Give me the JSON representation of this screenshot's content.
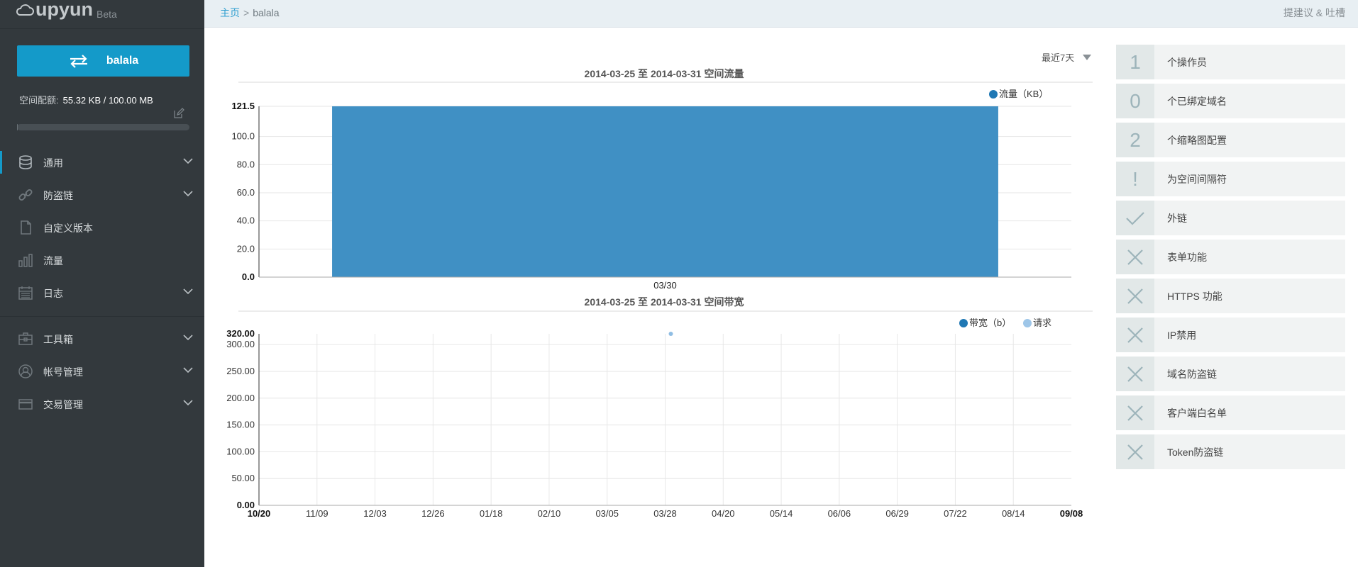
{
  "logo": {
    "text": "upyun",
    "beta": "Beta"
  },
  "space": {
    "name": "balala"
  },
  "quota": {
    "label": "空间配额:",
    "value": "55.32 KB / 100.00 MB",
    "used_fraction": 0.00054
  },
  "nav": [
    {
      "label": "通用",
      "icon": "database-icon",
      "expandable": true,
      "active": true
    },
    {
      "label": "防盗链",
      "icon": "link-icon",
      "expandable": true,
      "active": false
    },
    {
      "label": "自定义版本",
      "icon": "document-icon",
      "expandable": false,
      "active": false
    },
    {
      "label": "流量",
      "icon": "bar-chart-icon",
      "expandable": false,
      "active": false
    },
    {
      "label": "日志",
      "icon": "calendar-icon",
      "expandable": true,
      "active": false
    },
    {
      "label": "工具箱",
      "icon": "toolbox-icon",
      "expandable": true,
      "active": false
    },
    {
      "label": "帐号管理",
      "icon": "user-icon",
      "expandable": true,
      "active": false
    },
    {
      "label": "交易管理",
      "icon": "card-icon",
      "expandable": true,
      "active": false
    }
  ],
  "topbar": {
    "home": "主页",
    "separator": ">",
    "current": "balala",
    "feedback": "提建议 & 吐槽"
  },
  "range": {
    "selected": "最近7天"
  },
  "chart_data": [
    {
      "type": "bar",
      "title": "2014-03-25 至 2014-03-31 空间流量",
      "legend": [
        {
          "name": "流量（KB）",
          "color": "#1f78b4"
        }
      ],
      "legend_position": "top-right",
      "categories": [
        "03/30"
      ],
      "series": [
        {
          "name": "流量（KB）",
          "values": [
            121.5
          ]
        }
      ],
      "y_ticks": [
        "0.0",
        "20.0",
        "40.0",
        "60.0",
        "80.0",
        "100.0",
        "121.5"
      ],
      "y_tick_values": [
        0,
        20,
        40,
        60,
        80,
        100,
        121.5
      ],
      "ylim": [
        0,
        121.5
      ],
      "grid": true
    },
    {
      "type": "line",
      "title": "2014-03-25 至 2014-03-31 空间带宽",
      "legend": [
        {
          "name": "带宽（b）",
          "color": "#1f78b4"
        },
        {
          "name": "请求",
          "color": "#9ec6e8"
        }
      ],
      "legend_position": "top-right",
      "x_ticks": [
        "10/20",
        "11/09",
        "12/03",
        "12/26",
        "01/18",
        "02/10",
        "03/05",
        "03/28",
        "04/20",
        "05/14",
        "06/06",
        "06/29",
        "07/22",
        "08/14",
        "09/08"
      ],
      "y_ticks": [
        "0.00",
        "50.00",
        "100.00",
        "150.00",
        "200.00",
        "250.00",
        "300.00",
        "320.00"
      ],
      "y_tick_values": [
        0,
        50,
        100,
        150,
        200,
        250,
        300,
        320
      ],
      "ylim": [
        0,
        320
      ],
      "series": [
        {
          "name": "请求",
          "points": [
            {
              "x": "03/28",
              "y": 320
            }
          ]
        }
      ],
      "grid": true
    }
  ],
  "features": [
    {
      "badge": "1",
      "label": "个操作员"
    },
    {
      "badge": "0",
      "label": "个已绑定域名"
    },
    {
      "badge": "2",
      "label": "个缩略图配置"
    },
    {
      "badge": "!",
      "label": "为空间间隔符"
    },
    {
      "badge": "check-icon",
      "label": "外链"
    },
    {
      "badge": "cross-icon",
      "label": "表单功能"
    },
    {
      "badge": "cross-icon",
      "label": "HTTPS 功能"
    },
    {
      "badge": "cross-icon",
      "label": "IP禁用"
    },
    {
      "badge": "cross-icon",
      "label": "域名防盗链"
    },
    {
      "badge": "cross-icon",
      "label": "客户端白名单"
    },
    {
      "badge": "cross-icon",
      "label": "Token防盗链"
    }
  ]
}
